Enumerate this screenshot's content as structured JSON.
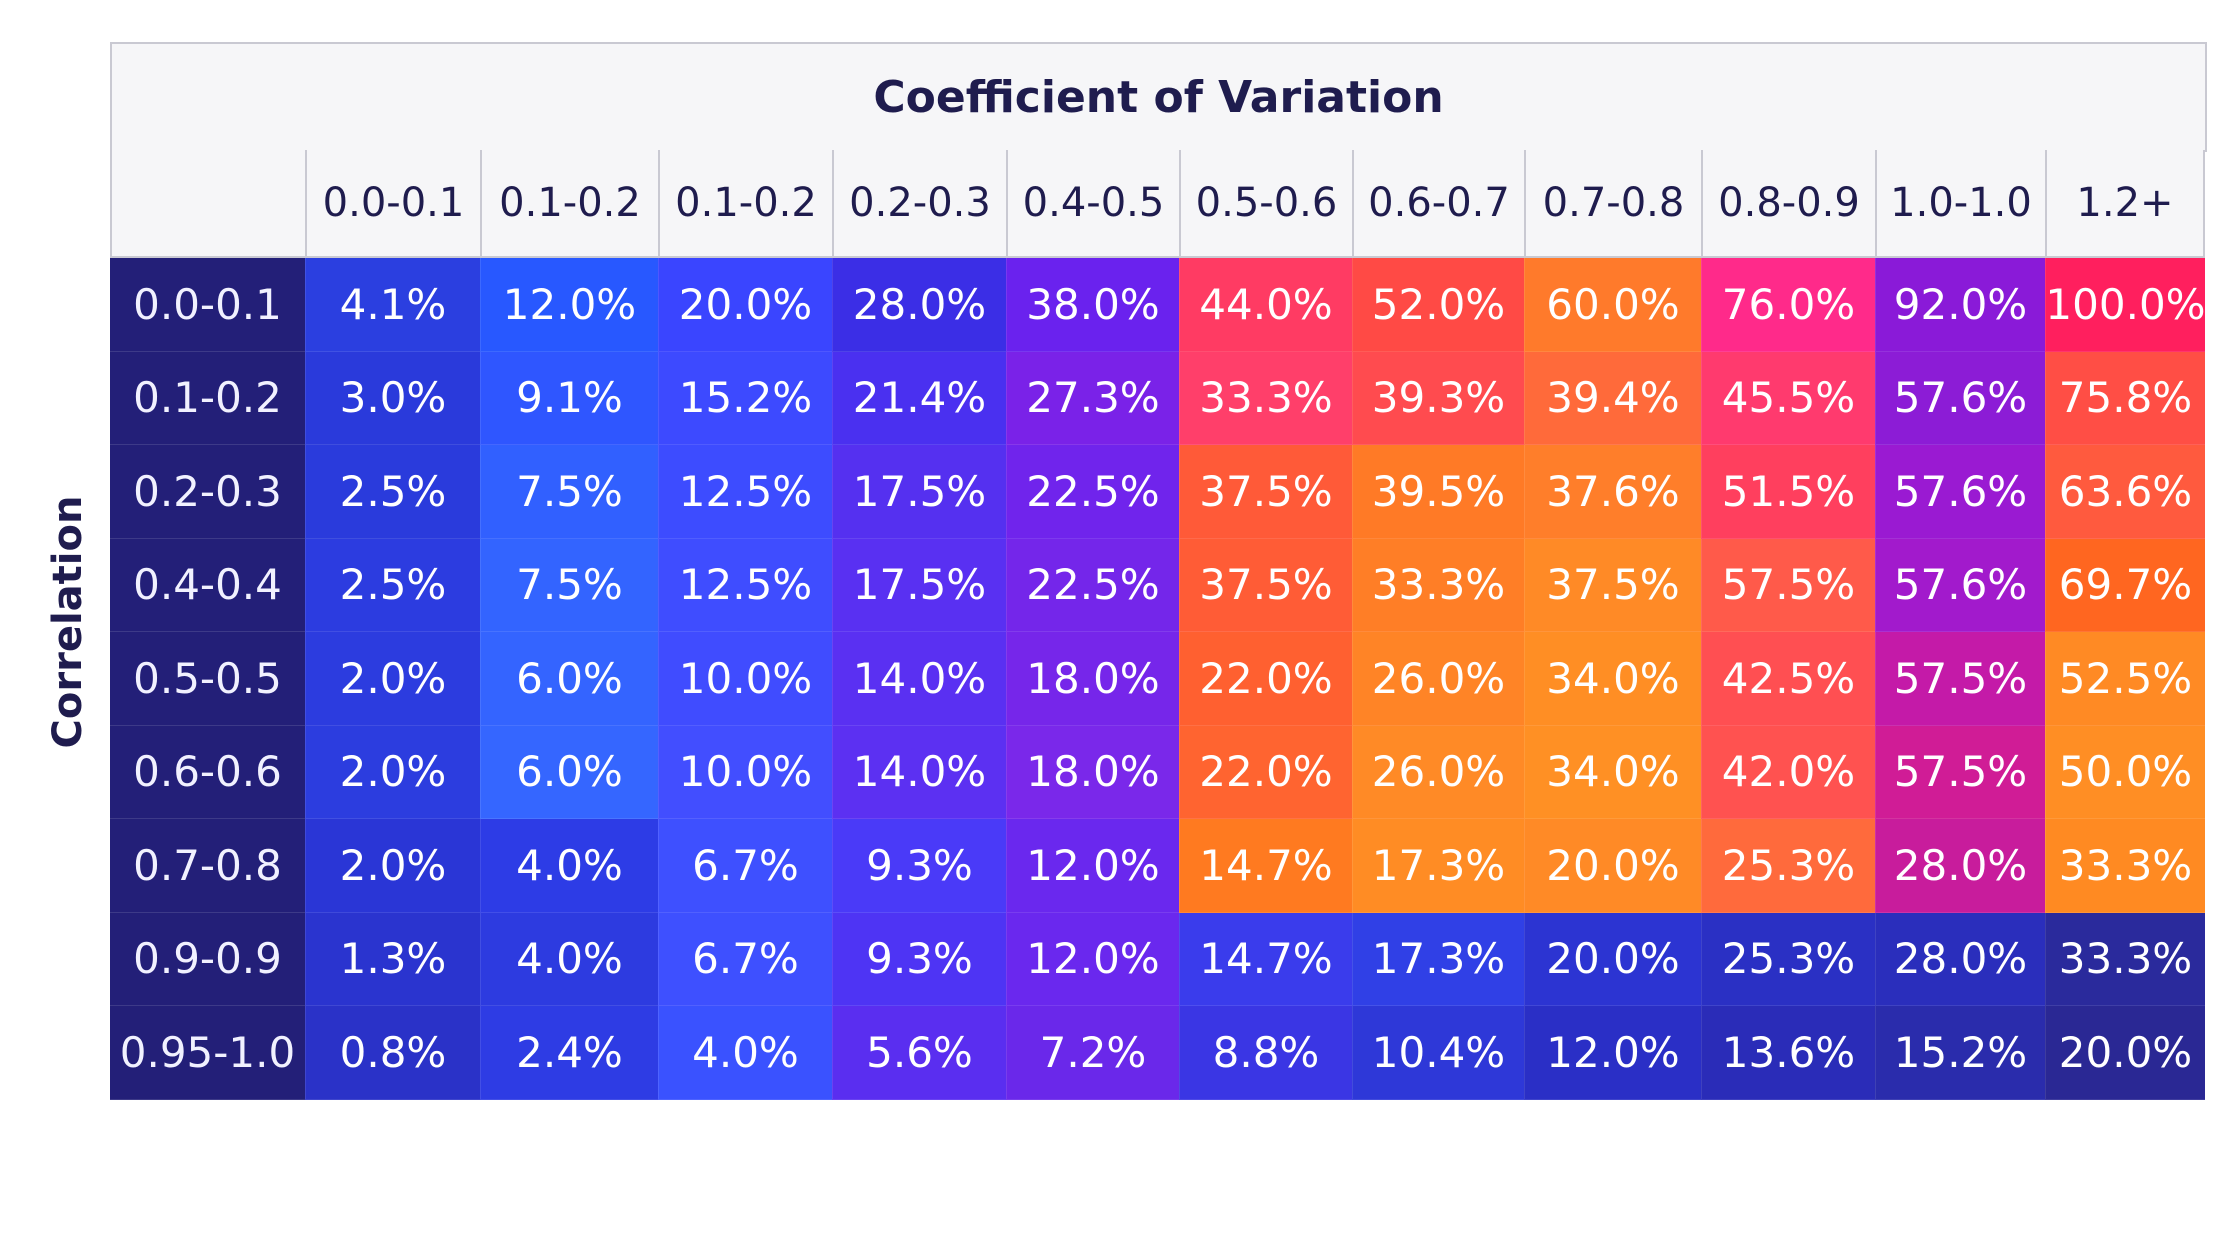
{
  "chart_data": {
    "type": "heatmap",
    "title": "Coefficient of Variation",
    "ylabel": "Correlation",
    "columns": [
      "0.0-0.1",
      "0.1-0.2",
      "0.1-0.2",
      "0.2-0.3",
      "0.4-0.5",
      "0.5-0.6",
      "0.6-0.7",
      "0.7-0.8",
      "0.8-0.9",
      "1.0-1.0",
      "1.2+"
    ],
    "rows": [
      "0.0-0.1",
      "0.1-0.2",
      "0.2-0.3",
      "0.4-0.4",
      "0.5-0.5",
      "0.6-0.6",
      "0.7-0.8",
      "0.9-0.9",
      "0.95-1.0"
    ],
    "values": [
      [
        "4.1%",
        "12.0%",
        "20.0%",
        "28.0%",
        "38.0%",
        "44.0%",
        "52.0%",
        "60.0%",
        "76.0%",
        "92.0%",
        "100.0%"
      ],
      [
        "3.0%",
        "9.1%",
        "15.2%",
        "21.4%",
        "27.3%",
        "33.3%",
        "39.3%",
        "39.4%",
        "45.5%",
        "57.6%",
        "75.8%"
      ],
      [
        "2.5%",
        "7.5%",
        "12.5%",
        "17.5%",
        "22.5%",
        "37.5%",
        "39.5%",
        "37.6%",
        "51.5%",
        "57.6%",
        "63.6%"
      ],
      [
        "2.5%",
        "7.5%",
        "12.5%",
        "17.5%",
        "22.5%",
        "37.5%",
        "33.3%",
        "37.5%",
        "57.5%",
        "57.6%",
        "69.7%"
      ],
      [
        "2.0%",
        "6.0%",
        "10.0%",
        "14.0%",
        "18.0%",
        "22.0%",
        "26.0%",
        "34.0%",
        "42.5%",
        "57.5%",
        "52.5%"
      ],
      [
        "2.0%",
        "6.0%",
        "10.0%",
        "14.0%",
        "18.0%",
        "22.0%",
        "26.0%",
        "34.0%",
        "42.0%",
        "57.5%",
        "50.0%"
      ],
      [
        "2.0%",
        "4.0%",
        "6.7%",
        "9.3%",
        "12.0%",
        "14.7%",
        "17.3%",
        "20.0%",
        "25.3%",
        "28.0%",
        "33.3%"
      ],
      [
        "1.3%",
        "4.0%",
        "6.7%",
        "9.3%",
        "12.0%",
        "14.7%",
        "17.3%",
        "20.0%",
        "25.3%",
        "28.0%",
        "33.3%"
      ],
      [
        "0.8%",
        "2.4%",
        "4.0%",
        "5.6%",
        "7.2%",
        "8.8%",
        "10.4%",
        "12.0%",
        "13.6%",
        "15.2%",
        "20.0%"
      ]
    ],
    "cell_colors": [
      [
        "#2b3fe0",
        "#2858ff",
        "#3a45ff",
        "#3b2ee6",
        "#6a22ee",
        "#ff3b63",
        "#ff4a45",
        "#ff7a2b",
        "#ff2a8a",
        "#8a1ad8",
        "#ff1f5e"
      ],
      [
        "#2a3adb",
        "#2f56ff",
        "#3d4aff",
        "#4a30f0",
        "#7a22e8",
        "#ff3f6a",
        "#ff4b4f",
        "#ff6a3a",
        "#ff3a6e",
        "#8c1cd6",
        "#ff4e45"
      ],
      [
        "#2a3bdc",
        "#3160ff",
        "#3d4cff",
        "#5530f0",
        "#7024ec",
        "#ff5a38",
        "#ff7a26",
        "#ff7e2a",
        "#ff3f5e",
        "#9a1ad2",
        "#ff5a3e"
      ],
      [
        "#2c3ce0",
        "#3364ff",
        "#3f4dff",
        "#5930f2",
        "#7426ea",
        "#ff5c36",
        "#ff7e26",
        "#ff8a26",
        "#ff5a4a",
        "#a21acc",
        "#ff6620"
      ],
      [
        "#2c3cdf",
        "#3464ff",
        "#404cff",
        "#5a30f2",
        "#7626ea",
        "#ff6030",
        "#ff8426",
        "#ff8e24",
        "#ff4f52",
        "#c41aa8",
        "#ff8a24"
      ],
      [
        "#2c3ddf",
        "#3566ff",
        "#424eff",
        "#5c30f2",
        "#7a28ea",
        "#ff6430",
        "#ff8a26",
        "#ff9024",
        "#ff5250",
        "#d01c96",
        "#ff8e24"
      ],
      [
        "#2a36d6",
        "#2d3ce6",
        "#3e50ff",
        "#4a3af8",
        "#6a28ee",
        "#ff7a20",
        "#ff8c24",
        "#ff8a26",
        "#ff6a3c",
        "#c81c9c",
        "#ff8a22"
      ],
      [
        "#2a34cf",
        "#2d3be0",
        "#3e50ff",
        "#4e34f4",
        "#6a28ee",
        "#3a3cec",
        "#3040e6",
        "#2c34d2",
        "#2a30c4",
        "#2a2ebc",
        "#2a2a9c"
      ],
      [
        "#2a32c8",
        "#2e3ce4",
        "#3a52ff",
        "#5a2ef0",
        "#6a28ea",
        "#3a36e4",
        "#2e38d8",
        "#2a2fc6",
        "#2a2cb8",
        "#2a2cac",
        "#2a2894"
      ]
    ]
  }
}
